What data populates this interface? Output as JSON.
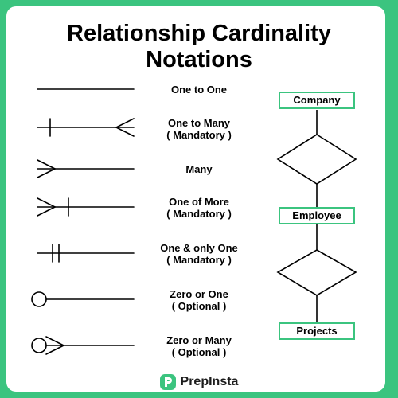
{
  "title_lines": [
    "Relationship Cardinality",
    "Notations"
  ],
  "notations": [
    {
      "id": "one-to-one",
      "lines": [
        "One to One",
        ""
      ]
    },
    {
      "id": "one-to-many",
      "lines": [
        "One to Many",
        "( Mandatory )"
      ]
    },
    {
      "id": "many",
      "lines": [
        "Many",
        ""
      ]
    },
    {
      "id": "one-or-more",
      "lines": [
        "One of More",
        "( Mandatory )"
      ]
    },
    {
      "id": "one-and-only-one",
      "lines": [
        "One & only One",
        "( Mandatory )"
      ]
    },
    {
      "id": "zero-or-one",
      "lines": [
        "Zero or One",
        "( Optional )"
      ]
    },
    {
      "id": "zero-or-many",
      "lines": [
        "Zero or Many",
        "( Optional )"
      ]
    }
  ],
  "entities": [
    "Company",
    "Employee",
    "Projects"
  ],
  "footer": {
    "brand": "PrepInsta",
    "logo_icon": "prepinsta-logo-icon"
  },
  "colors": {
    "accent": "#3bc47f",
    "ink": "#000000"
  }
}
